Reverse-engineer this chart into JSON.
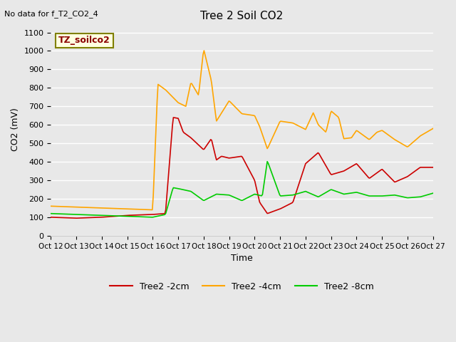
{
  "title": "Tree 2 Soil CO2",
  "subtitle": "No data for f_T2_CO2_4",
  "xlabel": "Time",
  "ylabel": "CO2 (mV)",
  "ylim": [
    0,
    1150
  ],
  "yticks": [
    0,
    100,
    200,
    300,
    400,
    500,
    600,
    700,
    800,
    900,
    1000,
    1100
  ],
  "xtick_labels": [
    "Oct 12",
    "Oct 13",
    "Oct 14",
    "Oct 15",
    "Oct 16",
    "Oct 17",
    "Oct 18",
    "Oct 19",
    "Oct 20",
    "Oct 21",
    "Oct 22",
    "Oct 23",
    "Oct 24",
    "Oct 25",
    "Oct 26",
    "Oct 27"
  ],
  "legend_label": "TZ_soilco2",
  "line_colors": {
    "2cm": "#cc0000",
    "4cm": "#ffa500",
    "8cm": "#00cc00"
  },
  "legend_entries": [
    "Tree2 -2cm",
    "Tree2 -4cm",
    "Tree2 -8cm"
  ],
  "background_color": "#e8e8e8",
  "plot_bg_color": "#e8e8e8",
  "grid_color": "#ffffff"
}
